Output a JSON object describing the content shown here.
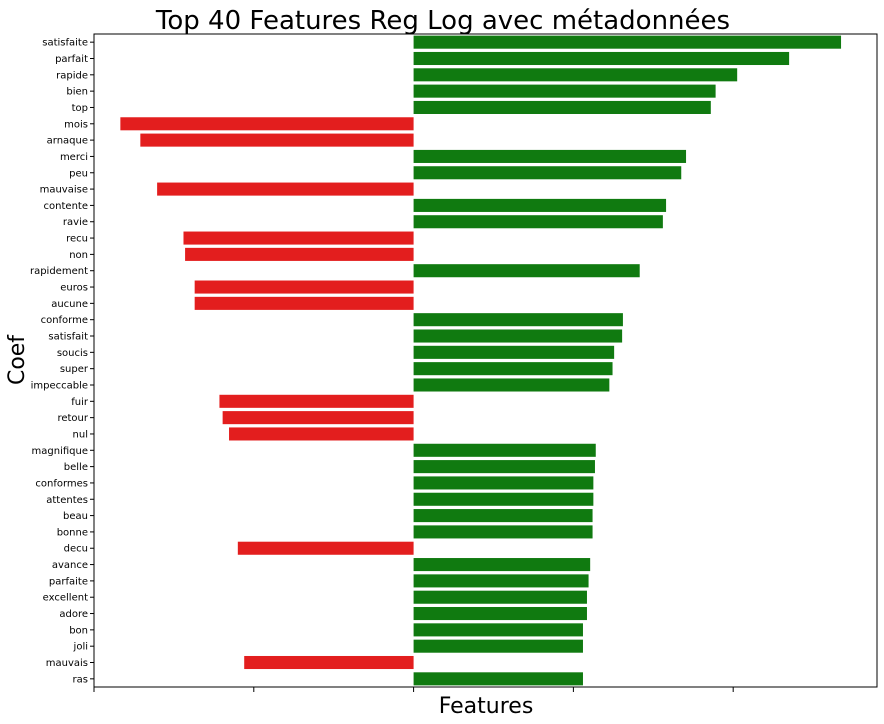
{
  "chart_data": {
    "type": "bar",
    "orientation": "horizontal",
    "title": "Top 40 Features Reg Log avec métadonnées",
    "xlabel": "Features",
    "ylabel": "Coef",
    "grid": false,
    "xlim": [
      -4.0,
      5.8
    ],
    "x_ticks": [
      -4,
      -2,
      0,
      2,
      4
    ],
    "colors": {
      "positive": "#107a10",
      "negative": "#e31e1e"
    },
    "categories": [
      "satisfaite",
      "parfait",
      "rapide",
      "bien",
      "top",
      "mois",
      "arnaque",
      "merci",
      "peu",
      "mauvaise",
      "contente",
      "ravie",
      "recu",
      "non",
      "rapidement",
      "euros",
      "aucune",
      "conforme",
      "satisfait",
      "soucis",
      "super",
      "impeccable",
      "fuir",
      "retour",
      "nul",
      "magnifique",
      "belle",
      "conformes",
      "attentes",
      "beau",
      "bonne",
      "decu",
      "avance",
      "parfaite",
      "excellent",
      "adore",
      "bon",
      "joli",
      "mauvais",
      "ras"
    ],
    "values": [
      5.35,
      4.7,
      4.05,
      3.78,
      3.72,
      -3.67,
      -3.42,
      3.41,
      3.35,
      -3.21,
      3.16,
      3.12,
      -2.88,
      -2.86,
      2.83,
      -2.74,
      -2.74,
      2.62,
      2.61,
      2.51,
      2.49,
      2.45,
      -2.43,
      -2.39,
      -2.31,
      2.28,
      2.27,
      2.25,
      2.25,
      2.24,
      2.24,
      -2.2,
      2.21,
      2.19,
      2.17,
      2.17,
      2.12,
      2.12,
      -2.12,
      2.12
    ]
  }
}
